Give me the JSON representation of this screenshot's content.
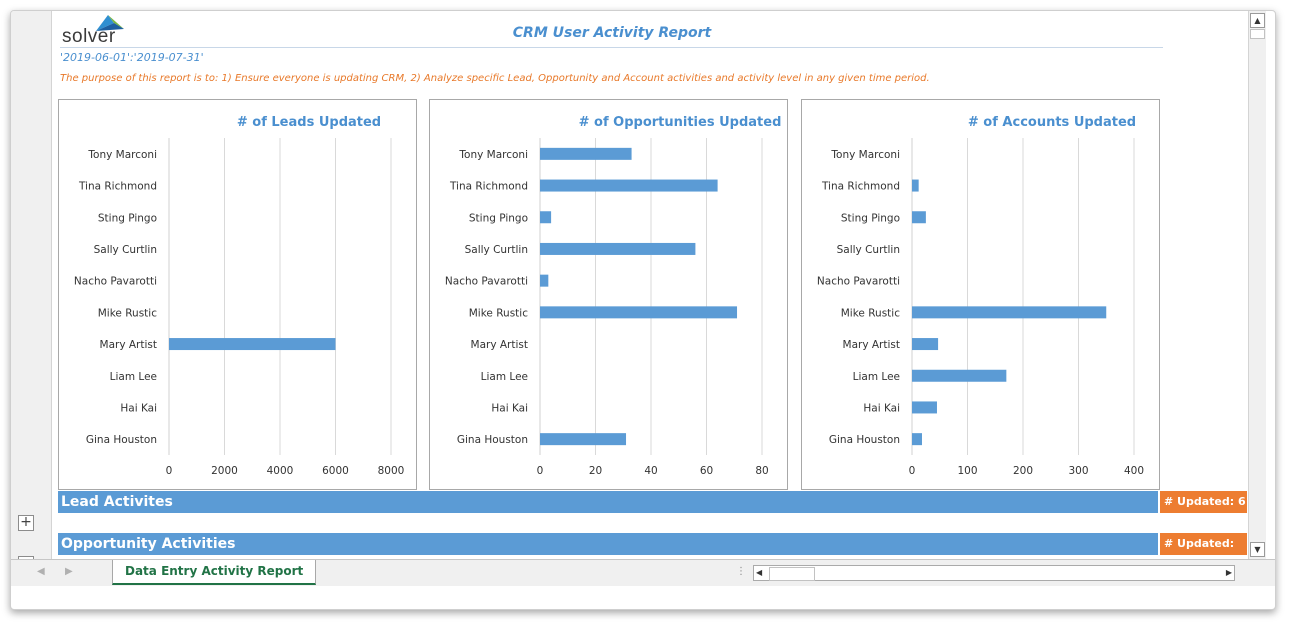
{
  "logo": {
    "text": "solver"
  },
  "report": {
    "title": "CRM User Activity Report",
    "date_range": "'2019-06-01':'2019-07-31'",
    "purpose": "The purpose of this report is to: 1) Ensure everyone is updating CRM, 2) Analyze specific Lead, Opportunity and Account activities and activity level in any given time period."
  },
  "chart_data": [
    {
      "type": "bar",
      "orientation": "horizontal",
      "title": "# of Leads Updated",
      "categories": [
        "Tony Marconi",
        "Tina Richmond",
        "Sting Pingo",
        "Sally Curtlin",
        "Nacho Pavarotti",
        "Mike Rustic",
        "Mary Artist",
        "Liam Lee",
        "Hai Kai",
        "Gina Houston"
      ],
      "values": [
        0,
        0,
        0,
        0,
        0,
        0,
        6000,
        0,
        0,
        0
      ],
      "xlim": [
        0,
        8000
      ],
      "ticks": [
        0,
        2000,
        4000,
        6000,
        8000
      ],
      "grid": true
    },
    {
      "type": "bar",
      "orientation": "horizontal",
      "title": "# of Opportunities Updated",
      "categories": [
        "Tony Marconi",
        "Tina Richmond",
        "Sting Pingo",
        "Sally Curtlin",
        "Nacho Pavarotti",
        "Mike Rustic",
        "Mary Artist",
        "Liam Lee",
        "Hai Kai",
        "Gina Houston"
      ],
      "values": [
        33,
        64,
        4,
        56,
        3,
        71,
        0,
        0,
        0,
        31
      ],
      "xlim": [
        0,
        80
      ],
      "ticks": [
        0,
        20,
        40,
        60,
        80
      ],
      "grid": true
    },
    {
      "type": "bar",
      "orientation": "horizontal",
      "title": "# of Accounts Updated",
      "categories": [
        "Tony Marconi",
        "Tina Richmond",
        "Sting Pingo",
        "Sally Curtlin",
        "Nacho Pavarotti",
        "Mike Rustic",
        "Mary Artist",
        "Liam Lee",
        "Hai Kai",
        "Gina Houston"
      ],
      "values": [
        0,
        12,
        25,
        0,
        0,
        350,
        47,
        170,
        45,
        18
      ],
      "xlim": [
        0,
        400
      ],
      "ticks": [
        0,
        100,
        200,
        300,
        400
      ],
      "grid": true
    }
  ],
  "colors": {
    "bar": "#5b9bd5",
    "section": "#5b9bd5",
    "badge": "#ed7d31",
    "title": "#4a8fcf",
    "purpose": "#e8792a",
    "tab": "#217346"
  },
  "sections": [
    {
      "label": "Lead Activites",
      "updated_label": "# Updated:  6"
    },
    {
      "label": "Opportunity Activities",
      "updated_label": "# Updated:"
    }
  ],
  "outline": {
    "expand_label": "+"
  },
  "scroll": {
    "up": "▲",
    "down": "▼",
    "left": "◀",
    "right": "▶"
  },
  "sheet_nav": {
    "prev": "◀",
    "next": "▶",
    "split": "⋮"
  },
  "sheet_tab": {
    "label": "Data Entry Activity Report"
  }
}
